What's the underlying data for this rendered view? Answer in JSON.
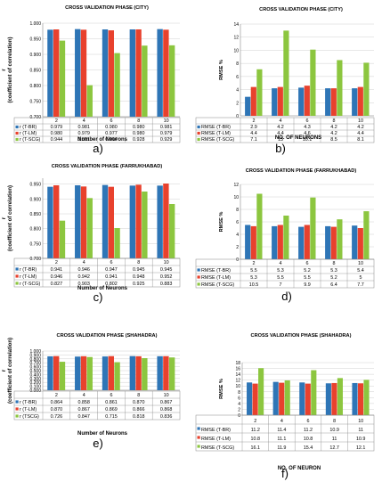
{
  "colors": {
    "series": [
      "#2e75b6",
      "#e8412d",
      "#8cc63f"
    ],
    "grid": "#d0d0d0",
    "axis": "#888888"
  },
  "chart_data": [
    {
      "type": "bar",
      "title": "CROSS VALIDATION PHASE (CITY)",
      "xlabel": "Number of Neurons",
      "ylabel": "r",
      "ylabel2": "(coefficient of correlation)",
      "caption": "a)",
      "categories": [
        "2",
        "4",
        "6",
        "8",
        "10"
      ],
      "ylim": [
        0.7,
        1.0
      ],
      "yticks": [
        0.7,
        0.75,
        0.8,
        0.85,
        0.9,
        0.95,
        1
      ],
      "ytick_labels": [
        "0.700",
        "0.750",
        "0.800",
        "0.850",
        "0.900",
        "0.950",
        "1.000"
      ],
      "series": [
        {
          "name": "r (T-BR)",
          "values": [
            0.979,
            0.981,
            0.98,
            0.98,
            0.981
          ],
          "labels": [
            "0.979",
            "0.981",
            "0.980",
            "0.980",
            "0.981"
          ]
        },
        {
          "name": "r (T-LM)",
          "values": [
            0.98,
            0.979,
            0.977,
            0.98,
            0.979
          ],
          "labels": [
            "0.980",
            "0.979",
            "0.977",
            "0.980",
            "0.979"
          ]
        },
        {
          "name": "r (T-SCG)",
          "values": [
            0.944,
            0.801,
            0.904,
            0.928,
            0.929
          ],
          "labels": [
            "0.944",
            "0.801",
            "0.904",
            "0.928",
            "0.929"
          ]
        }
      ]
    },
    {
      "type": "bar",
      "title": "CROSS VALIDATION PHASE (CITY)",
      "xlabel": "NO. OF NEURONS",
      "ylabel": "RMSE %",
      "caption": "b)",
      "categories": [
        "2",
        "4",
        "6",
        "8",
        "10"
      ],
      "ylim": [
        0,
        14
      ],
      "yticks": [
        0,
        2,
        4,
        6,
        8,
        10,
        12,
        14
      ],
      "ytick_labels": [
        "0",
        "2",
        "4",
        "6",
        "8",
        "10",
        "12",
        "14"
      ],
      "series": [
        {
          "name": "RMSE (T-BR)",
          "values": [
            2.9,
            4.2,
            4.3,
            4.2,
            4.2
          ],
          "labels": [
            "2.9",
            "4.2",
            "4.3",
            "4.2",
            "4.2"
          ]
        },
        {
          "name": "RMSE (T-LM)",
          "values": [
            4.4,
            4.4,
            4.6,
            4.2,
            4.4
          ],
          "labels": [
            "4.4",
            "4.4",
            "4.6",
            "4.2",
            "4.4"
          ]
        },
        {
          "name": "RMSE (T-SCG)",
          "values": [
            7.1,
            13,
            10.1,
            8.5,
            8.1
          ],
          "labels": [
            "7.1",
            "13",
            "10.1",
            "8.5",
            "8.1"
          ]
        }
      ]
    },
    {
      "type": "bar",
      "title": "CROSS VALIDATION PHASE (FARRUKHABAD)",
      "xlabel": "Number of Neurons",
      "ylabel": "r",
      "ylabel2": "(coefficient of correlation)",
      "caption": "c)",
      "categories": [
        "2",
        "4",
        "6",
        "8",
        "10"
      ],
      "ylim": [
        0.7,
        0.97
      ],
      "yticks": [
        0.7,
        0.75,
        0.8,
        0.85,
        0.9,
        0.95
      ],
      "ytick_labels": [
        "0.700",
        "0.750",
        "0.800",
        "0.850",
        "0.900",
        "0.950"
      ],
      "series": [
        {
          "name": "r (T-BR)",
          "values": [
            0.941,
            0.946,
            0.947,
            0.945,
            0.945
          ],
          "labels": [
            "0.941",
            "0.946",
            "0.947",
            "0.945",
            "0.945"
          ]
        },
        {
          "name": "r (T-LM)",
          "values": [
            0.946,
            0.942,
            0.941,
            0.948,
            0.952
          ],
          "labels": [
            "0.946",
            "0.942",
            "0.941",
            "0.948",
            "0.952"
          ]
        },
        {
          "name": "r (T-SCG)",
          "values": [
            0.827,
            0.903,
            0.802,
            0.925,
            0.883
          ],
          "labels": [
            "0.827",
            "0.903",
            "0.802",
            "0.925",
            "0.883"
          ]
        }
      ]
    },
    {
      "type": "bar",
      "title": "CROSS VALIDATION PHASE (FARRUKHABAD)",
      "xlabel": "",
      "ylabel": "RMSE %",
      "caption": "d)",
      "categories": [
        "2",
        "4",
        "6",
        "8",
        "10"
      ],
      "ylim": [
        0,
        12
      ],
      "yticks": [
        0,
        2,
        4,
        6,
        8,
        10,
        12
      ],
      "ytick_labels": [
        "0",
        "2",
        "4",
        "6",
        "8",
        "10",
        "12"
      ],
      "series": [
        {
          "name": "RMSE (T-BR)",
          "values": [
            5.5,
            5.3,
            5.2,
            5.3,
            5.4
          ],
          "labels": [
            "5.5",
            "5.3",
            "5.2",
            "5.3",
            "5.4"
          ]
        },
        {
          "name": "RMSE (T-LM)",
          "values": [
            5.3,
            5.5,
            5.5,
            5.2,
            5
          ],
          "labels": [
            "5.3",
            "5.5",
            "5.5",
            "5.2",
            "5"
          ]
        },
        {
          "name": "RMSE (T-SCG)",
          "values": [
            10.5,
            7,
            9.9,
            6.4,
            7.7
          ],
          "labels": [
            "10.5",
            "7",
            "9.9",
            "6.4",
            "7.7"
          ]
        }
      ]
    },
    {
      "type": "bar",
      "title": "CROSS VALIDATION PHASE (SHAHADRA)",
      "xlabel": "Number of Neurons",
      "ylabel": "r",
      "ylabel2": "(coefficient of correlation)",
      "caption": "e)",
      "categories": [
        "2",
        "4",
        "6",
        "8",
        "10"
      ],
      "ylim": [
        0,
        1.0
      ],
      "yticks": [
        0,
        0.1,
        0.2,
        0.3,
        0.4,
        0.5,
        0.6,
        0.7,
        0.8,
        0.9,
        1
      ],
      "ytick_labels": [
        "0.000",
        "0.100",
        "0.200",
        "0.300",
        "0.400",
        "0.500",
        "0.600",
        "0.700",
        "0.800",
        "0.900",
        "1.000"
      ],
      "series": [
        {
          "name": "r (T-BR)",
          "values": [
            0.864,
            0.858,
            0.861,
            0.87,
            0.867
          ],
          "labels": [
            "0.864",
            "0.858",
            "0.861",
            "0.870",
            "0.867"
          ]
        },
        {
          "name": "r (T-LM)",
          "values": [
            0.87,
            0.867,
            0.869,
            0.866,
            0.868
          ],
          "labels": [
            "0.870",
            "0.867",
            "0.869",
            "0.866",
            "0.868"
          ]
        },
        {
          "name": "r (TSCG)",
          "values": [
            0.726,
            0.847,
            0.715,
            0.818,
            0.836
          ],
          "labels": [
            "0.726",
            "0.847",
            "0.715",
            "0.818",
            "0.836"
          ]
        }
      ]
    },
    {
      "type": "bar",
      "title": "CROSS VALIDATION PHASE (SHAHADRA)",
      "xlabel": "NO. OF NEURON",
      "ylabel": "RMSE %",
      "caption": "f)",
      "categories": [
        "2",
        "4",
        "6",
        "8",
        "10"
      ],
      "ylim": [
        0,
        18
      ],
      "yticks": [
        0,
        2,
        4,
        6,
        8,
        10,
        12,
        14,
        16,
        18
      ],
      "ytick_labels": [
        "0",
        "2",
        "4",
        "6",
        "8",
        "10",
        "12",
        "14",
        "16",
        "18"
      ],
      "series": [
        {
          "name": "RMSE (T-BR)",
          "values": [
            11.2,
            11.4,
            11.2,
            10.9,
            11
          ],
          "labels": [
            "11.2",
            "11.4",
            "11.2",
            "10.9",
            "11"
          ]
        },
        {
          "name": "RMSE (T-LM)",
          "values": [
            10.8,
            11.1,
            10.8,
            11,
            10.9
          ],
          "labels": [
            "10.8",
            "11.1",
            "10.8",
            "11",
            "10.9"
          ]
        },
        {
          "name": "RMSE (T-SCG)",
          "values": [
            16.1,
            11.9,
            15.4,
            12.7,
            12.1
          ],
          "labels": [
            "16.1",
            "11.9",
            "15.4",
            "12.7",
            "12.1"
          ]
        }
      ]
    }
  ]
}
